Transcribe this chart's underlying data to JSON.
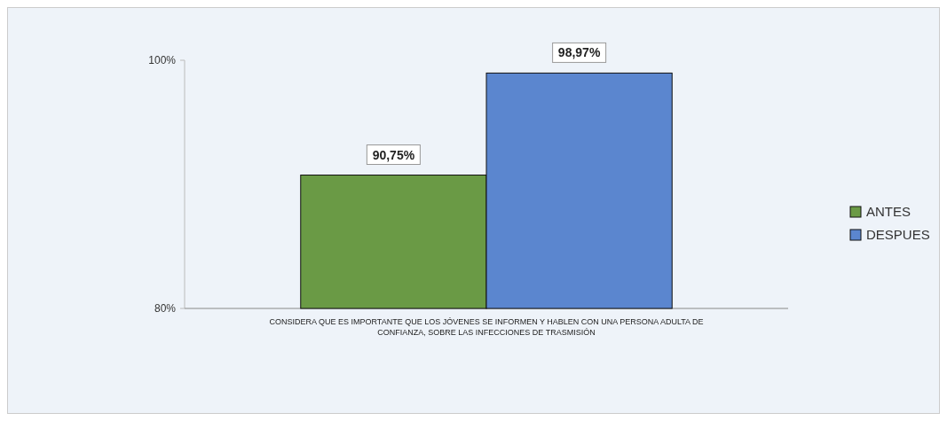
{
  "chart_data": {
    "type": "bar",
    "categories": [
      "CONSIDERA QUE ES IMPORTANTE QUE LOS JÓVENES SE INFORMEN Y HABLEN CON UNA PERSONA ADULTA DE CONFIANZA, SOBRE LAS INFECCIONES DE TRASMISIÓN"
    ],
    "series": [
      {
        "name": "ANTES",
        "color": "#6a9a45",
        "values": [
          90.75
        ],
        "value_labels": [
          "90,75%"
        ]
      },
      {
        "name": "DESPUES",
        "color": "#5b86cf",
        "values": [
          98.97
        ],
        "value_labels": [
          "98,97%"
        ]
      }
    ],
    "ylim": [
      80,
      100
    ],
    "yticks": [
      {
        "value": 80,
        "label": "80%"
      },
      {
        "value": 100,
        "label": "100%"
      }
    ],
    "legend": "right"
  }
}
